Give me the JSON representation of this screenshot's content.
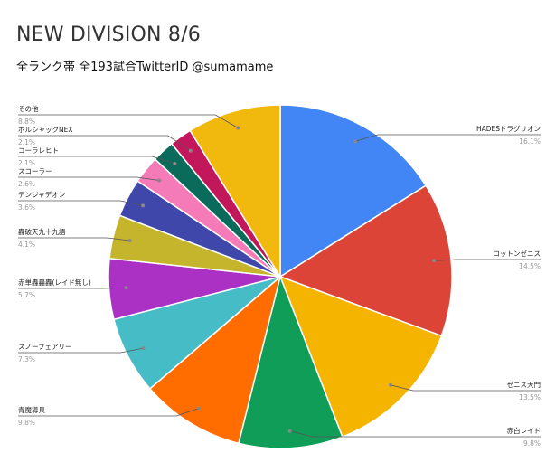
{
  "chart_data": {
    "type": "pie",
    "title": "NEW DIVISION 8/6",
    "subtitle": "全ランク帯 全193試合TwitterID @sumamame",
    "slices": [
      {
        "label": "HADESドラグリオン",
        "percent_label": "16.1%",
        "value": 16.1,
        "color": "#4285F4",
        "side": "right"
      },
      {
        "label": "コットンゼニス",
        "percent_label": "14.5%",
        "value": 14.5,
        "color": "#DB4437",
        "side": "right"
      },
      {
        "label": "ゼニス天門",
        "percent_label": "13.5%",
        "value": 13.5,
        "color": "#F4B400",
        "side": "right"
      },
      {
        "label": "赤白レイド",
        "percent_label": "9.8%",
        "value": 9.8,
        "color": "#0F9D58",
        "side": "right"
      },
      {
        "label": "青魔導具",
        "percent_label": "9.8%",
        "value": 9.8,
        "color": "#FF6D01",
        "side": "left"
      },
      {
        "label": "スノーフェアリー",
        "percent_label": "7.3%",
        "value": 7.3,
        "color": "#46BDC6",
        "side": "left"
      },
      {
        "label": "赤単轟轟轟(レイド無し)",
        "percent_label": "5.7%",
        "value": 5.7,
        "color": "#AB30C4",
        "side": "left"
      },
      {
        "label": "轟破天九十九語",
        "percent_label": "4.1%",
        "value": 4.1,
        "color": "#C5B52D",
        "side": "left"
      },
      {
        "label": "デンジャデオン",
        "percent_label": "3.6%",
        "value": 3.6,
        "color": "#3F48AA",
        "side": "left"
      },
      {
        "label": "スコーラー",
        "percent_label": "2.6%",
        "value": 2.6,
        "color": "#F47AB8",
        "side": "left"
      },
      {
        "label": "コーラレヒト",
        "percent_label": "2.1%",
        "value": 2.1,
        "color": "#0B6B5A",
        "side": "left"
      },
      {
        "label": "ボルシャックNEX",
        "percent_label": "2.1%",
        "value": 2.1,
        "color": "#C2185B",
        "side": "left"
      },
      {
        "label": "その他",
        "percent_label": "8.8%",
        "value": 8.8,
        "color": "#F1B90E",
        "side": "left"
      }
    ]
  }
}
